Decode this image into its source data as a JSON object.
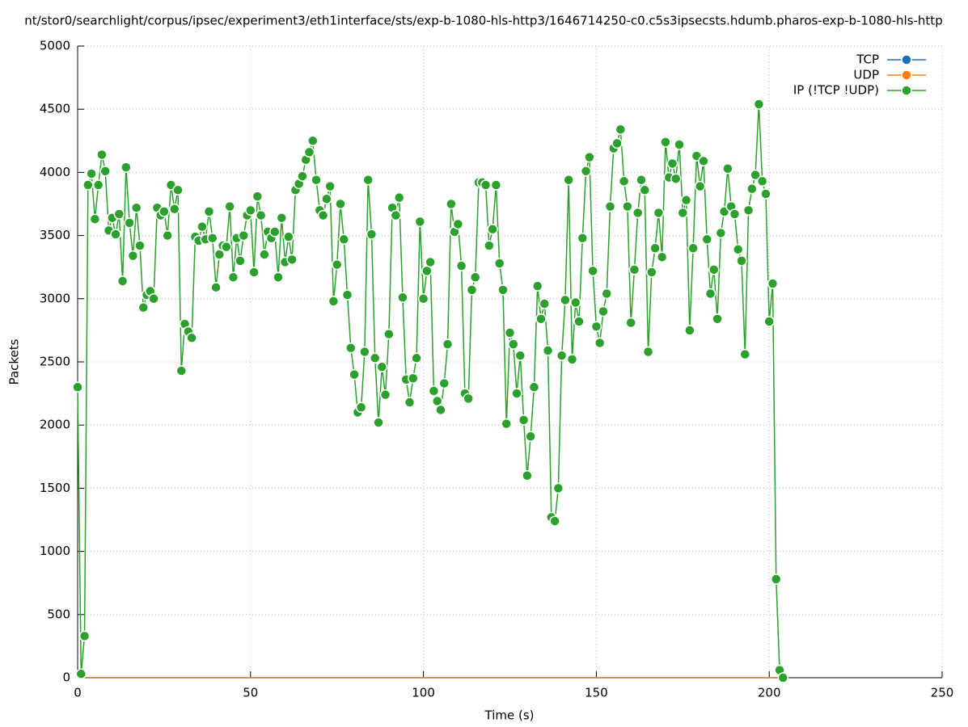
{
  "chart_data": {
    "type": "line",
    "title": "nt/stor0/searchlight/corpus/ipsec/experiment3/eth1interface/sts/exp-b-1080-hls-http3/1646714250-c0.c5s3ipsecsts.hdumb.pharos-exp-b-1080-hls-http",
    "x_label": "Time (s)",
    "y_label": "Packets",
    "xlim": [
      0,
      250
    ],
    "xticks": [
      0,
      50,
      100,
      150,
      200,
      250
    ],
    "ylim": [
      0,
      5000
    ],
    "yticks": [
      0,
      500,
      1000,
      1500,
      2000,
      2500,
      3000,
      3500,
      4000,
      4500,
      5000
    ],
    "grid": true,
    "legend": "top-right",
    "x": [
      0,
      1,
      2,
      3,
      4,
      5,
      6,
      7,
      8,
      9,
      10,
      11,
      12,
      13,
      14,
      15,
      16,
      17,
      18,
      19,
      20,
      21,
      22,
      23,
      24,
      25,
      26,
      27,
      28,
      29,
      30,
      31,
      32,
      33,
      34,
      35,
      36,
      37,
      38,
      39,
      40,
      41,
      42,
      43,
      44,
      45,
      46,
      47,
      48,
      49,
      50,
      51,
      52,
      53,
      54,
      55,
      56,
      57,
      58,
      59,
      60,
      61,
      62,
      63,
      64,
      65,
      66,
      67,
      68,
      69,
      70,
      71,
      72,
      73,
      74,
      75,
      76,
      77,
      78,
      79,
      80,
      81,
      82,
      83,
      84,
      85,
      86,
      87,
      88,
      89,
      90,
      91,
      92,
      93,
      94,
      95,
      96,
      97,
      98,
      99,
      100,
      101,
      102,
      103,
      104,
      105,
      106,
      107,
      108,
      109,
      110,
      111,
      112,
      113,
      114,
      115,
      116,
      117,
      118,
      119,
      120,
      121,
      122,
      123,
      124,
      125,
      126,
      127,
      128,
      129,
      130,
      131,
      132,
      133,
      134,
      135,
      136,
      137,
      138,
      139,
      140,
      141,
      142,
      143,
      144,
      145,
      146,
      147,
      148,
      149,
      150,
      151,
      152,
      153,
      154,
      155,
      156,
      157,
      158,
      159,
      160,
      161,
      162,
      163,
      164,
      165,
      166,
      167,
      168,
      169,
      170,
      171,
      172,
      173,
      174,
      175,
      176,
      177,
      178,
      179,
      180,
      181,
      182,
      183,
      184,
      185,
      186,
      187,
      188,
      189,
      190,
      191,
      192,
      193,
      194,
      195,
      196,
      197,
      198,
      199,
      200,
      201,
      202,
      203,
      204
    ],
    "series": [
      {
        "name": "TCP",
        "color": "#1f6fb5",
        "values": [
          0,
          0,
          0,
          0,
          0,
          0,
          0,
          0,
          0,
          0,
          0,
          0,
          0,
          0,
          0,
          0,
          0,
          0,
          0,
          0,
          0,
          0,
          0,
          0,
          0,
          0,
          0,
          0,
          0,
          0,
          0,
          0,
          0,
          0,
          0,
          0,
          0,
          0,
          0,
          0,
          0,
          0,
          0,
          0,
          0,
          0,
          0,
          0,
          0,
          0,
          0,
          0,
          0,
          0,
          0,
          0,
          0,
          0,
          0,
          0,
          0,
          0,
          0,
          0,
          0,
          0,
          0,
          0,
          0,
          0,
          0,
          0,
          0,
          0,
          0,
          0,
          0,
          0,
          0,
          0,
          0,
          0,
          0,
          0,
          0,
          0,
          0,
          0,
          0,
          0,
          0,
          0,
          0,
          0,
          0,
          0,
          0,
          0,
          0,
          0,
          0,
          0,
          0,
          0,
          0,
          0,
          0,
          0,
          0,
          0,
          0,
          0,
          0,
          0,
          0,
          0,
          0,
          0,
          0,
          0,
          0,
          0,
          0,
          0,
          0,
          0,
          0,
          0,
          0,
          0,
          0,
          0,
          0,
          0,
          0,
          0,
          0,
          0,
          0,
          0,
          0,
          0,
          0,
          0,
          0,
          0,
          0,
          0,
          0,
          0,
          0,
          0,
          0,
          0,
          0,
          0,
          0,
          0,
          0,
          0,
          0,
          0,
          0,
          0,
          0,
          0,
          0,
          0,
          0,
          0,
          0,
          0,
          0,
          0,
          0,
          0,
          0,
          0,
          0,
          0,
          0,
          0,
          0,
          0,
          0,
          0,
          0,
          0,
          0,
          0,
          0,
          0,
          0,
          0,
          0,
          0,
          0,
          0,
          0,
          0,
          0,
          0,
          0,
          0,
          0
        ]
      },
      {
        "name": "UDP",
        "color": "#ff7f0e",
        "values": [
          0,
          0,
          0,
          0,
          0,
          0,
          0,
          0,
          0,
          0,
          0,
          0,
          0,
          0,
          0,
          0,
          0,
          0,
          0,
          0,
          0,
          0,
          0,
          0,
          0,
          0,
          0,
          0,
          0,
          0,
          0,
          0,
          0,
          0,
          0,
          0,
          0,
          0,
          0,
          0,
          0,
          0,
          0,
          0,
          0,
          0,
          0,
          0,
          0,
          0,
          0,
          0,
          0,
          0,
          0,
          0,
          0,
          0,
          0,
          0,
          0,
          0,
          0,
          0,
          0,
          0,
          0,
          0,
          0,
          0,
          0,
          0,
          0,
          0,
          0,
          0,
          0,
          0,
          0,
          0,
          0,
          0,
          0,
          0,
          0,
          0,
          0,
          0,
          0,
          0,
          0,
          0,
          0,
          0,
          0,
          0,
          0,
          0,
          0,
          0,
          0,
          0,
          0,
          0,
          0,
          0,
          0,
          0,
          0,
          0,
          0,
          0,
          0,
          0,
          0,
          0,
          0,
          0,
          0,
          0,
          0,
          0,
          0,
          0,
          0,
          0,
          0,
          0,
          0,
          0,
          0,
          0,
          0,
          0,
          0,
          0,
          0,
          0,
          0,
          0,
          0,
          0,
          0,
          0,
          0,
          0,
          0,
          0,
          0,
          0,
          0,
          0,
          0,
          0,
          0,
          0,
          0,
          0,
          0,
          0,
          0,
          0,
          0,
          0,
          0,
          0,
          0,
          0,
          0,
          0,
          0,
          0,
          0,
          0,
          0,
          0,
          0,
          0,
          0,
          0,
          0,
          0,
          0,
          0,
          0,
          0,
          0,
          0,
          0,
          0,
          0,
          0,
          0,
          0,
          0,
          0,
          0,
          0,
          0,
          0,
          0,
          0,
          0,
          0,
          0
        ]
      },
      {
        "name": "IP (!TCP  !UDP)",
        "color": "#2ca02c",
        "values": [
          2300,
          30,
          330,
          3900,
          3990,
          3630,
          3900,
          4140,
          4010,
          3540,
          3640,
          3510,
          3670,
          3140,
          4040,
          3600,
          3340,
          3720,
          3420,
          2930,
          3030,
          3060,
          3000,
          3720,
          3660,
          3690,
          3500,
          3900,
          3710,
          3860,
          2430,
          2800,
          2740,
          2690,
          3490,
          3460,
          3570,
          3470,
          3690,
          3480,
          3090,
          3350,
          3420,
          3410,
          3730,
          3170,
          3480,
          3300,
          3500,
          3660,
          3700,
          3210,
          3810,
          3660,
          3350,
          3530,
          3480,
          3530,
          3170,
          3640,
          3290,
          3490,
          3310,
          3860,
          3910,
          3970,
          4100,
          4160,
          4250,
          3940,
          3700,
          3660,
          3790,
          3890,
          2980,
          3270,
          3750,
          3470,
          3030,
          2610,
          2400,
          2100,
          2140,
          2580,
          3940,
          3510,
          2530,
          2020,
          2460,
          2240,
          2720,
          3720,
          3660,
          3800,
          3010,
          2360,
          2180,
          2370,
          2530,
          3610,
          3000,
          3220,
          3290,
          2270,
          2190,
          2120,
          2330,
          2640,
          3750,
          3530,
          3590,
          3260,
          2250,
          2210,
          3070,
          3170,
          3920,
          3920,
          3900,
          3420,
          3550,
          3900,
          3280,
          3070,
          2010,
          2730,
          2640,
          2250,
          2550,
          2040,
          1600,
          1910,
          2300,
          3100,
          2840,
          2960,
          2590,
          1270,
          1240,
          1500,
          2550,
          2990,
          3940,
          2520,
          2970,
          2820,
          3480,
          4010,
          4120,
          3220,
          2780,
          2650,
          2900,
          3040,
          3730,
          4190,
          4230,
          4340,
          3930,
          3730,
          2810,
          3230,
          3680,
          3940,
          3860,
          2580,
          3210,
          3400,
          3680,
          3330,
          4240,
          3960,
          4070,
          3950,
          4220,
          3680,
          3780,
          2750,
          3400,
          4130,
          3890,
          4090,
          3470,
          3040,
          3230,
          2840,
          3520,
          3690,
          4030,
          3730,
          3670,
          3390,
          3300,
          2560,
          3700,
          3870,
          3980,
          4540,
          3930,
          3830,
          2820,
          3120,
          780,
          60,
          0
        ]
      }
    ]
  }
}
